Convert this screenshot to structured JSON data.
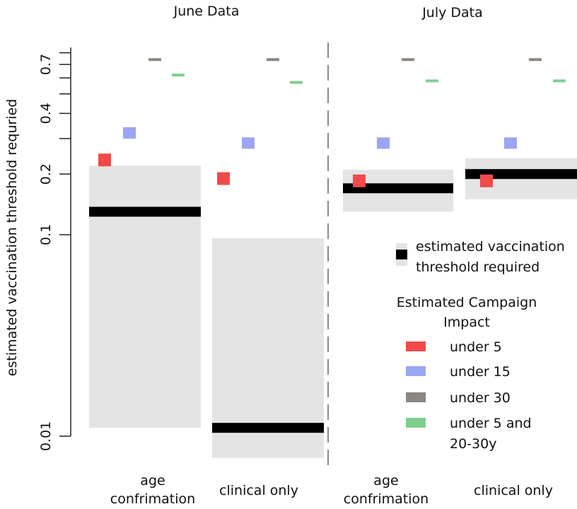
{
  "chart_data": {
    "type": "bar",
    "ylabel": "estimated vaccination threshold requried",
    "y_scale": "log",
    "ylim": [
      0.0075,
      0.85
    ],
    "yticks": [
      0.01,
      0.1,
      0.2,
      0.4,
      0.7
    ],
    "ytick_labels": [
      "0.01",
      "0.1",
      "0.2",
      "0.4",
      "0.7"
    ],
    "y_minor_ticks": [
      0.3,
      0.5,
      0.6,
      0.8
    ],
    "panels": [
      {
        "title": "June Data",
        "categories": [
          "age\nconfrimation",
          "clinical only"
        ]
      },
      {
        "title": "July Data",
        "categories": [
          "age\nconfrimation",
          "clinical only"
        ]
      }
    ],
    "threshold": {
      "name": "estimated vaccination\nthreshold required",
      "color": "#000000",
      "band_color": "#e4e4e4",
      "groups": [
        {
          "panel": 0,
          "category": 0,
          "estimate": 0.13,
          "lower": 0.011,
          "upper": 0.22
        },
        {
          "panel": 0,
          "category": 1,
          "estimate": 0.011,
          "lower": 0.0078,
          "upper": 0.096
        },
        {
          "panel": 1,
          "category": 0,
          "estimate": 0.17,
          "lower": 0.13,
          "upper": 0.21
        },
        {
          "panel": 1,
          "category": 1,
          "estimate": 0.2,
          "lower": 0.15,
          "upper": 0.24
        }
      ]
    },
    "legend_title": "Estimated Campaign\nImpact",
    "series": [
      {
        "name": "under 5",
        "color": "#f04a4a",
        "values": [
          0.235,
          0.19,
          0.185,
          0.185
        ]
      },
      {
        "name": "under 15",
        "color": "#9aa6f2",
        "values": [
          0.32,
          0.285,
          0.285,
          0.285
        ]
      },
      {
        "name": "under 30",
        "color": "#8c8580",
        "values": [
          0.74,
          0.74,
          0.74,
          0.74
        ]
      },
      {
        "name": "under 5 and\n20-30y",
        "color": "#7fce8e",
        "values": [
          0.62,
          0.57,
          0.58,
          0.58
        ]
      }
    ],
    "legend_position": "right",
    "grid": false
  }
}
